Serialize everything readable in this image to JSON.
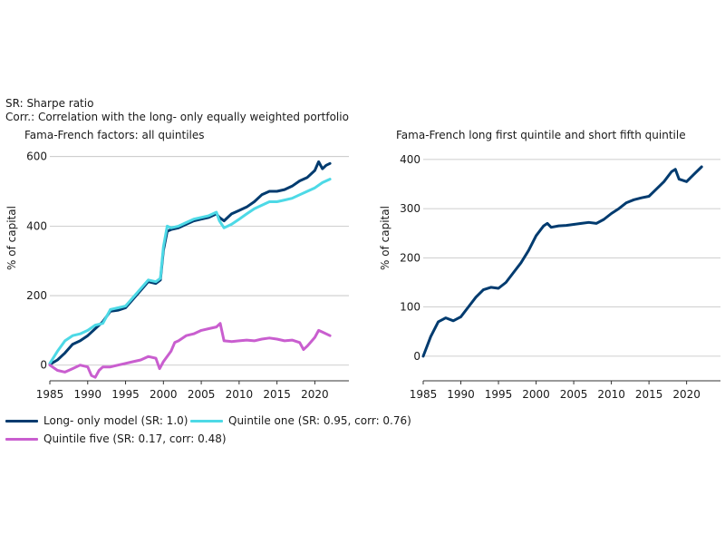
{
  "notes": {
    "sharpe": "SR: Sharpe ratio",
    "corr": "Corr.: Correlation with the long- only equally weighted portfolio"
  },
  "colors": {
    "long_only": "#003b6f",
    "quintile_one": "#4dd9e6",
    "quintile_five": "#c95ecf",
    "grid": "#bfbfbf",
    "axis": "#333333"
  },
  "legend": {
    "long_only": "Long- only model (SR: 1.0)",
    "quintile_one": "Quintile one (SR: 0.95, corr: 0.76)",
    "quintile_five": "Quintile five (SR: 0.17, corr: 0.48)"
  },
  "chart_data": [
    {
      "type": "line",
      "title": "Fama-French factors: all quintiles",
      "ylabel": "% of capital",
      "xlabel": "",
      "xlim": [
        1985,
        2024.5
      ],
      "ylim": [
        -45,
        620
      ],
      "yticks": [
        0,
        200,
        400,
        600
      ],
      "xticks": [
        1985,
        1990,
        1995,
        2000,
        2005,
        2010,
        2015,
        2020
      ],
      "grid": "horizontal",
      "series": [
        {
          "name": "Long- only model (SR: 1.0)",
          "color_key": "long_only",
          "x": [
            1985,
            1986,
            1987,
            1988,
            1989,
            1990,
            1991,
            1992,
            1993,
            1994,
            1995,
            1996,
            1997,
            1998,
            1999,
            1999.6,
            2000,
            2000.5,
            2001,
            2002,
            2003,
            2004,
            2005,
            2006,
            2007,
            2007.4,
            2008,
            2009,
            2010,
            2011,
            2012,
            2013,
            2014,
            2015,
            2016,
            2017,
            2018,
            2019,
            2020,
            2020.5,
            2021,
            2021.5,
            2022
          ],
          "y": [
            2,
            15,
            35,
            60,
            70,
            85,
            105,
            125,
            155,
            158,
            165,
            190,
            215,
            240,
            235,
            245,
            330,
            385,
            390,
            395,
            405,
            415,
            420,
            425,
            435,
            425,
            415,
            435,
            445,
            455,
            470,
            490,
            500,
            500,
            505,
            515,
            530,
            540,
            560,
            585,
            565,
            575,
            580
          ]
        },
        {
          "name": "Quintile one (SR: 0.95, corr: 0.76)",
          "color_key": "quintile_one",
          "x": [
            1985,
            1986,
            1987,
            1988,
            1989,
            1990,
            1991,
            1992,
            1993,
            1994,
            1995,
            1996,
            1997,
            1998,
            1999,
            1999.6,
            2000,
            2000.5,
            2001,
            2002,
            2003,
            2004,
            2005,
            2006,
            2007,
            2007.4,
            2008,
            2009,
            2010,
            2011,
            2012,
            2013,
            2014,
            2015,
            2016,
            2017,
            2018,
            2019,
            2020,
            2021,
            2022
          ],
          "y": [
            5,
            40,
            70,
            85,
            90,
            100,
            115,
            120,
            160,
            165,
            170,
            195,
            220,
            245,
            240,
            250,
            340,
            400,
            395,
            400,
            410,
            420,
            425,
            430,
            440,
            415,
            395,
            405,
            420,
            435,
            450,
            460,
            470,
            470,
            475,
            480,
            490,
            500,
            510,
            525,
            535
          ]
        },
        {
          "name": "Quintile five (SR: 0.17, corr: 0.48)",
          "color_key": "quintile_five",
          "x": [
            1985,
            1986,
            1987,
            1988,
            1989,
            1990,
            1990.5,
            1991,
            1991.5,
            1992,
            1993,
            1994,
            1995,
            1996,
            1997,
            1998,
            1999,
            1999.5,
            2000,
            2001,
            2001.5,
            2002,
            2003,
            2004,
            2005,
            2006,
            2007,
            2007.5,
            2008,
            2009,
            2010,
            2011,
            2012,
            2013,
            2014,
            2015,
            2016,
            2017,
            2018,
            2018.5,
            2019,
            2020,
            2020.5,
            2021,
            2022
          ],
          "y": [
            0,
            -15,
            -20,
            -10,
            0,
            -5,
            -30,
            -35,
            -15,
            -5,
            -5,
            0,
            5,
            10,
            15,
            25,
            20,
            -10,
            10,
            40,
            65,
            70,
            85,
            90,
            100,
            105,
            110,
            120,
            70,
            68,
            70,
            72,
            70,
            75,
            78,
            75,
            70,
            72,
            65,
            45,
            55,
            80,
            100,
            95,
            85
          ]
        }
      ]
    },
    {
      "type": "line",
      "title": "Fama-French long first quintile and short fifth quintile",
      "ylabel": "% of capital",
      "xlabel": "",
      "xlim": [
        1985,
        2024.5
      ],
      "ylim": [
        -50,
        420
      ],
      "yticks": [
        0,
        100,
        200,
        300,
        400
      ],
      "xticks": [
        1985,
        1990,
        1995,
        2000,
        2005,
        2010,
        2015,
        2020
      ],
      "grid": "horizontal",
      "series": [
        {
          "name": "",
          "color_key": "long_only",
          "x": [
            1985,
            1986,
            1987,
            1988,
            1989,
            1990,
            1991,
            1992,
            1993,
            1994,
            1995,
            1996,
            1997,
            1998,
            1999,
            2000,
            2001,
            2001.5,
            2002,
            2003,
            2004,
            2005,
            2006,
            2007,
            2008,
            2009,
            2010,
            2011,
            2012,
            2013,
            2014,
            2015,
            2016,
            2017,
            2018,
            2018.5,
            2019,
            2020,
            2021,
            2022
          ],
          "y": [
            0,
            40,
            70,
            78,
            72,
            80,
            100,
            120,
            135,
            140,
            138,
            150,
            170,
            190,
            215,
            245,
            265,
            270,
            262,
            265,
            266,
            268,
            270,
            272,
            270,
            278,
            290,
            300,
            312,
            318,
            322,
            325,
            340,
            355,
            375,
            380,
            360,
            355,
            370,
            385
          ]
        }
      ]
    }
  ]
}
